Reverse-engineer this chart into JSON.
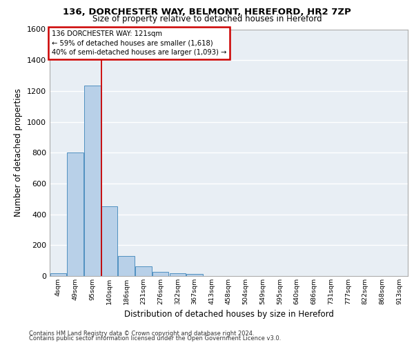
{
  "title1": "136, DORCHESTER WAY, BELMONT, HEREFORD, HR2 7ZP",
  "title2": "Size of property relative to detached houses in Hereford",
  "xlabel": "Distribution of detached houses by size in Hereford",
  "ylabel": "Number of detached properties",
  "categories": [
    "4sqm",
    "49sqm",
    "95sqm",
    "140sqm",
    "186sqm",
    "231sqm",
    "276sqm",
    "322sqm",
    "367sqm",
    "413sqm",
    "458sqm",
    "504sqm",
    "549sqm",
    "595sqm",
    "640sqm",
    "686sqm",
    "731sqm",
    "777sqm",
    "822sqm",
    "868sqm",
    "913sqm"
  ],
  "values": [
    20,
    800,
    1235,
    450,
    130,
    62,
    25,
    18,
    15,
    0,
    0,
    0,
    0,
    0,
    0,
    0,
    0,
    0,
    0,
    0,
    0
  ],
  "bar_color": "#b8d0e8",
  "bar_edge_color": "#5090c0",
  "vline_x": 2.55,
  "annotation_line1": "136 DORCHESTER WAY: 121sqm",
  "annotation_line2": "← 59% of detached houses are smaller (1,618)",
  "annotation_line3": "40% of semi-detached houses are larger (1,093) →",
  "annotation_box_color": "#ffffff",
  "annotation_box_edge_color": "#cc0000",
  "vline_color": "#cc0000",
  "ylim": [
    0,
    1600
  ],
  "yticks": [
    0,
    200,
    400,
    600,
    800,
    1000,
    1200,
    1400,
    1600
  ],
  "background_color": "#e8eef4",
  "grid_color": "#ffffff",
  "footer1": "Contains HM Land Registry data © Crown copyright and database right 2024.",
  "footer2": "Contains public sector information licensed under the Open Government Licence v3.0."
}
